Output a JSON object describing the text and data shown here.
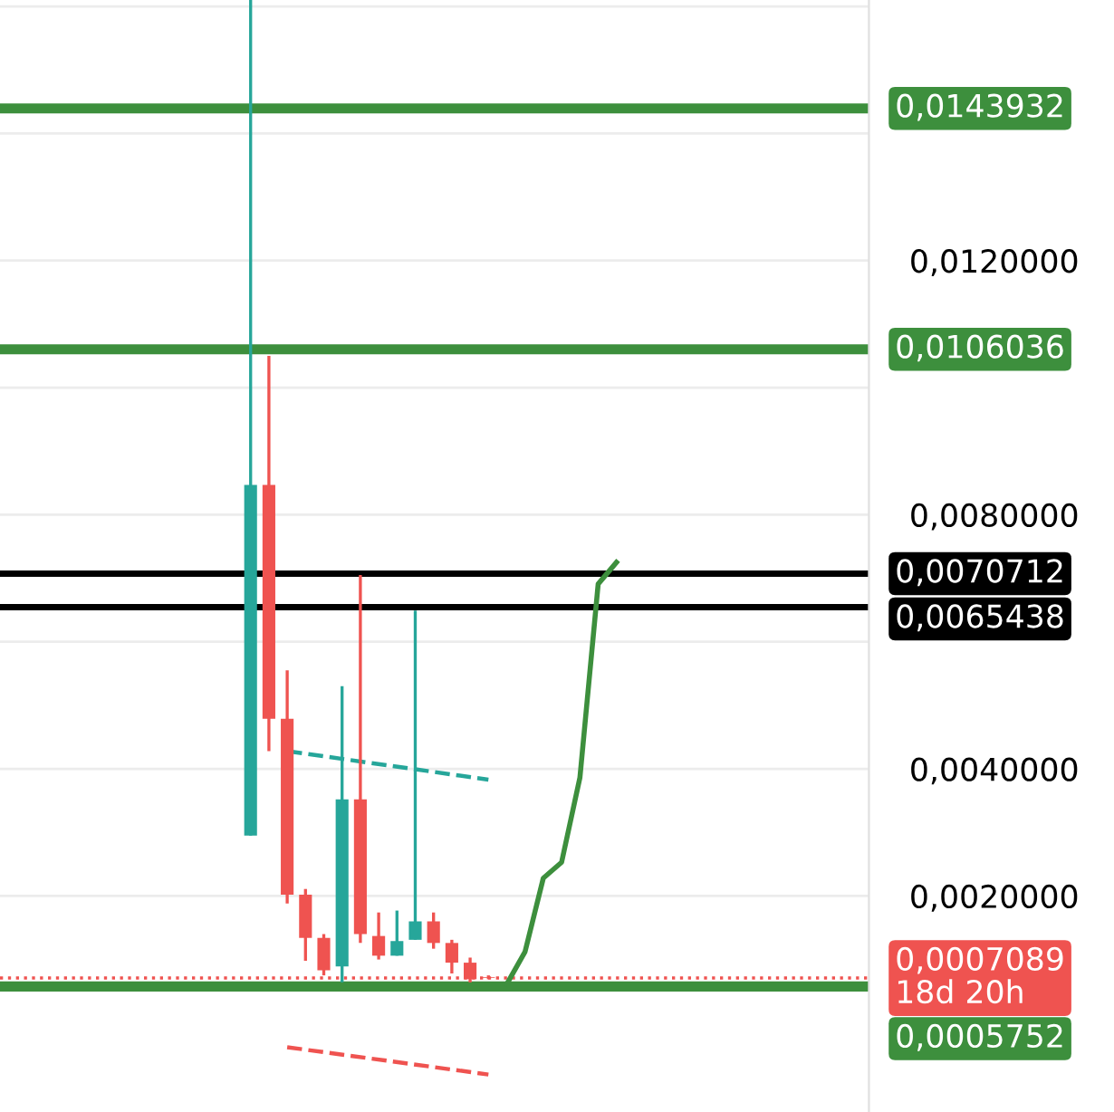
{
  "chart_data": {
    "type": "candlestick",
    "categories": [
      null,
      null,
      null,
      null,
      null,
      null,
      null,
      null,
      null,
      null,
      null,
      null,
      null,
      null,
      null,
      null,
      null,
      null,
      null,
      null,
      null,
      null,
      null,
      null,
      null,
      null,
      null,
      null,
      null,
      null,
      null,
      null,
      null,
      null,
      null,
      null,
      null,
      null,
      null,
      null,
      null,
      null,
      null,
      null,
      null,
      null,
      null
    ],
    "ohlc": [
      null,
      null,
      null,
      null,
      null,
      null,
      null,
      null,
      null,
      null,
      null,
      null,
      null,
      [
        0.00295,
        0.0161,
        0.00295,
        0.00847
      ],
      [
        0.00847,
        0.0105,
        0.00428,
        0.00479
      ],
      [
        0.00479,
        0.00555,
        0.00188,
        0.00202
      ],
      [
        0.00202,
        0.00211,
        0.00098,
        0.00134
      ],
      [
        0.00134,
        0.0014,
        0.00075,
        0.00083
      ],
      [
        0.00089,
        0.0053,
        0.00064,
        0.00352
      ],
      [
        0.00352,
        0.00705,
        0.00126,
        0.0014
      ],
      [
        0.00137,
        0.00174,
        0.001,
        0.00106
      ],
      [
        0.00106,
        0.00177,
        0.00106,
        0.00129
      ],
      [
        0.00131,
        0.00649,
        0.00131,
        0.0016
      ],
      [
        0.0016,
        0.00174,
        0.00117,
        0.00126
      ],
      [
        0.00126,
        0.00131,
        0.00078,
        0.00095
      ],
      [
        0.00095,
        0.00103,
        0.00064,
        0.00069
      ],
      [
        0.00072,
        0.00075,
        0.00069,
        0.000709
      ],
      null,
      null,
      null,
      null,
      null,
      null,
      null,
      null,
      null,
      null,
      null,
      null,
      null,
      null,
      null,
      null,
      null,
      null,
      null,
      null
    ],
    "colors": [
      null,
      null,
      null,
      null,
      null,
      null,
      null,
      null,
      null,
      null,
      null,
      null,
      null,
      "#26a69a",
      "#ef5350",
      "#ef5350",
      "#ef5350",
      "#ef5350",
      "#26a69a",
      "#ef5350",
      "#ef5350",
      "#26a69a",
      "#26a69a",
      "#ef5350",
      "#ef5350",
      "#ef5350",
      "#ef5350",
      null,
      null,
      null,
      null,
      null,
      null,
      null,
      null,
      null,
      null,
      null,
      null,
      null,
      null,
      null,
      null,
      null,
      null,
      null,
      null
    ],
    "series": [
      {
        "type": "line",
        "color": "#3d8f3d",
        "line_style": "solid",
        "values": [
          null,
          null,
          null,
          null,
          null,
          null,
          null,
          null,
          null,
          null,
          null,
          null,
          null,
          null,
          null,
          null,
          null,
          null,
          null,
          null,
          null,
          null,
          null,
          null,
          null,
          null,
          null,
          0.00061,
          0.00112,
          0.00228,
          0.00253,
          0.00386,
          0.00691,
          0.00725,
          null,
          null,
          null,
          null,
          null,
          null,
          null,
          null,
          null,
          null,
          null,
          null,
          null
        ]
      },
      {
        "type": "line",
        "color": "#26a69a",
        "line_style": "dashed",
        "values": [
          null,
          null,
          null,
          null,
          null,
          null,
          null,
          null,
          null,
          null,
          null,
          null,
          null,
          null,
          null,
          0.00428,
          null,
          null,
          null,
          null,
          null,
          null,
          null,
          null,
          null,
          null,
          0.00383,
          null,
          null,
          null,
          null,
          null,
          null,
          null,
          null,
          null,
          null,
          null,
          null,
          null,
          null,
          null,
          null,
          null,
          null,
          null,
          null
        ]
      },
      {
        "type": "line",
        "color": "#ef5350",
        "line_style": "dashed",
        "values": [
          null,
          null,
          null,
          null,
          null,
          null,
          null,
          null,
          null,
          null,
          null,
          null,
          null,
          null,
          null,
          -0.00038,
          null,
          null,
          null,
          null,
          null,
          null,
          null,
          null,
          null,
          null,
          -0.00081,
          null,
          null,
          null,
          null,
          null,
          null,
          null,
          null,
          null,
          null,
          null,
          null,
          null,
          null,
          null,
          null,
          null,
          null,
          null,
          null
        ]
      }
    ],
    "ylim": [
      -0.0014,
      0.0161
    ],
    "yticks": [
      {
        "value": 0.002,
        "label": "0,0020000"
      },
      {
        "value": 0.004,
        "label": "0,0040000"
      },
      {
        "value": 0.006,
        "label": null
      },
      {
        "value": 0.008,
        "label": "0,0080000"
      },
      {
        "value": 0.01,
        "label": null
      },
      {
        "value": 0.012,
        "label": "0,0120000"
      },
      {
        "value": 0.014,
        "label": null
      },
      {
        "value": 0.016,
        "label": null
      }
    ],
    "ref_lines": [
      {
        "axis": "y",
        "value": 0.0143932,
        "label": "0,0143932",
        "color": "#3d8f3d",
        "line_style": "solid"
      },
      {
        "axis": "y",
        "value": 0.0106036,
        "label": "0,0106036",
        "color": "#3d8f3d",
        "line_style": "solid"
      },
      {
        "axis": "y",
        "value": 0.0070712,
        "label": "0,0070712",
        "color": "#000000",
        "line_style": "solid"
      },
      {
        "axis": "y",
        "value": 0.0065438,
        "label": "0,0065438",
        "color": "#000000",
        "line_style": "solid"
      },
      {
        "axis": "y",
        "value": 0.0007089,
        "label": "0,0007089\n18d 20h",
        "color": "#ef5350",
        "line_style": "dotted"
      },
      {
        "axis": "y",
        "value": 0.0005752,
        "label": "0,0005752",
        "color": "#3d8f3d",
        "line_style": "solid"
      }
    ],
    "grid": "y",
    "tick_labels": "y"
  }
}
